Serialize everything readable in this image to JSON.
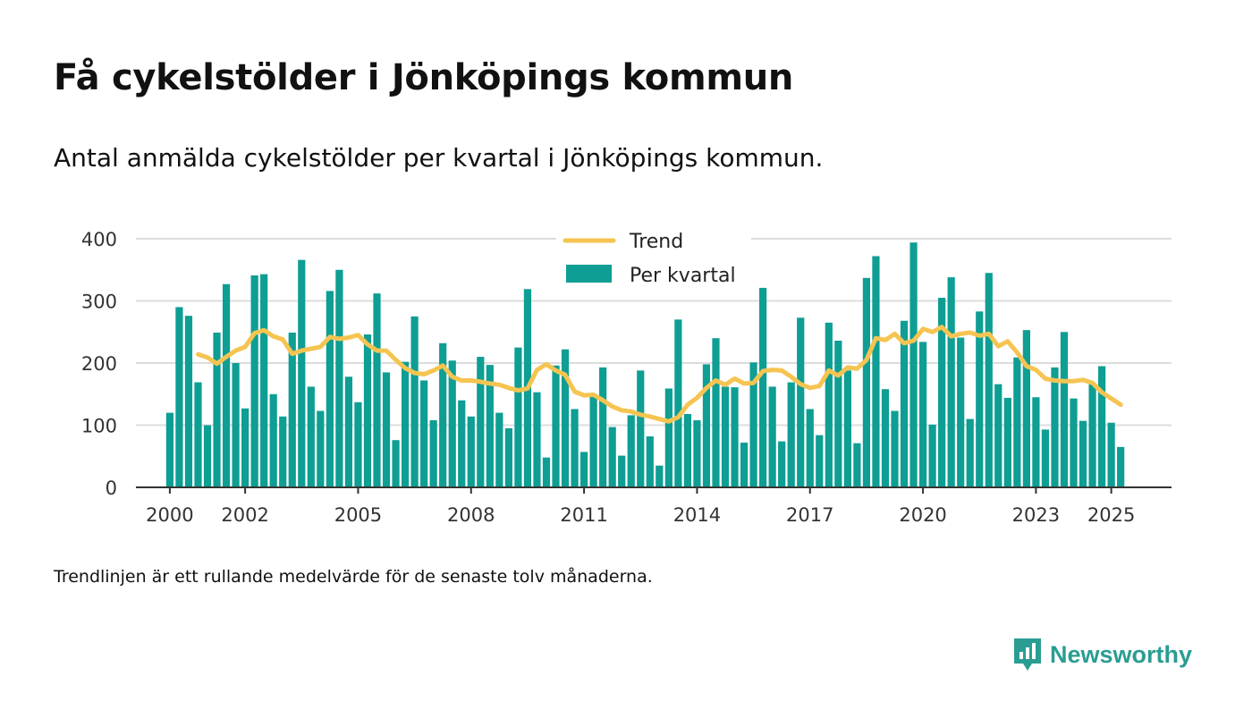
{
  "title": "Få cykelstölder i Jönköpings kommun",
  "subtitle": "Antal anmälda cykelstölder per kvartal i Jönköpings kommun.",
  "note": "Trendlinjen är ett rullande medelvärde för de senaste tolv månaderna.",
  "brand": {
    "name": "Newsworthy",
    "icon": "newsworthy-logo-icon"
  },
  "colors": {
    "bars": "#0e9e93",
    "trend": "#f5c451",
    "grid": "#dddddd",
    "axis": "#333333",
    "brand": "#2a9d92"
  },
  "chart_data": {
    "type": "bar",
    "xlim": [
      1999.1,
      2026.6
    ],
    "ylim": [
      0,
      400
    ],
    "yticks": [
      0,
      100,
      200,
      300,
      400
    ],
    "ytick_labels": [
      "0",
      "100",
      "200",
      "300",
      "400"
    ],
    "xticks": [
      2000,
      2002,
      2005,
      2008,
      2011,
      2014,
      2017,
      2020,
      2023,
      2025
    ],
    "xtick_labels": [
      "2000",
      "2002",
      "2005",
      "2008",
      "2011",
      "2014",
      "2017",
      "2020",
      "2023",
      "2025"
    ],
    "legend": {
      "placement": "top-center",
      "entries": [
        "Trend",
        "Per kvartal"
      ]
    },
    "series": [
      {
        "name": "Per kvartal",
        "type": "bar",
        "start": "2000 Q1",
        "values": [
          120,
          290,
          276,
          169,
          100,
          249,
          327,
          200,
          127,
          341,
          343,
          150,
          114,
          249,
          366,
          162,
          123,
          316,
          350,
          178,
          137,
          246,
          312,
          185,
          76,
          202,
          275,
          172,
          108,
          232,
          204,
          140,
          114,
          210,
          197,
          120,
          95,
          225,
          319,
          153,
          48,
          196,
          222,
          126,
          57,
          148,
          193,
          97,
          51,
          116,
          188,
          82,
          35,
          159,
          270,
          118,
          108,
          198,
          240,
          162,
          161,
          72,
          201,
          321,
          162,
          74,
          169,
          273,
          126,
          84,
          265,
          236,
          188,
          71,
          337,
          372,
          158,
          123,
          268,
          394,
          234,
          101,
          305,
          338,
          241,
          110,
          283,
          345,
          166,
          144,
          209,
          253,
          145,
          93,
          193,
          250,
          143,
          107,
          166,
          195,
          104,
          65
        ]
      },
      {
        "name": "Trend",
        "type": "line",
        "start": "2000 Q4",
        "values": [
          214,
          209,
          199,
          210,
          220,
          226,
          248,
          253,
          243,
          238,
          215,
          220,
          223,
          226,
          242,
          239,
          241,
          245,
          230,
          220,
          220,
          205,
          192,
          184,
          182,
          188,
          196,
          178,
          172,
          172,
          170,
          167,
          165,
          160,
          156,
          159,
          189,
          198,
          188,
          181,
          154,
          148,
          149,
          140,
          130,
          124,
          122,
          117,
          114,
          110,
          106,
          113,
          133,
          144,
          160,
          172,
          165,
          175,
          167,
          168,
          187,
          189,
          188,
          178,
          166,
          160,
          163,
          188,
          180,
          193,
          191,
          205,
          240,
          237,
          247,
          232,
          236,
          255,
          250,
          258,
          243,
          247,
          249,
          244,
          247,
          227,
          235,
          217,
          195,
          189,
          175,
          172,
          171,
          171,
          173,
          168,
          153,
          143,
          133
        ]
      }
    ]
  }
}
